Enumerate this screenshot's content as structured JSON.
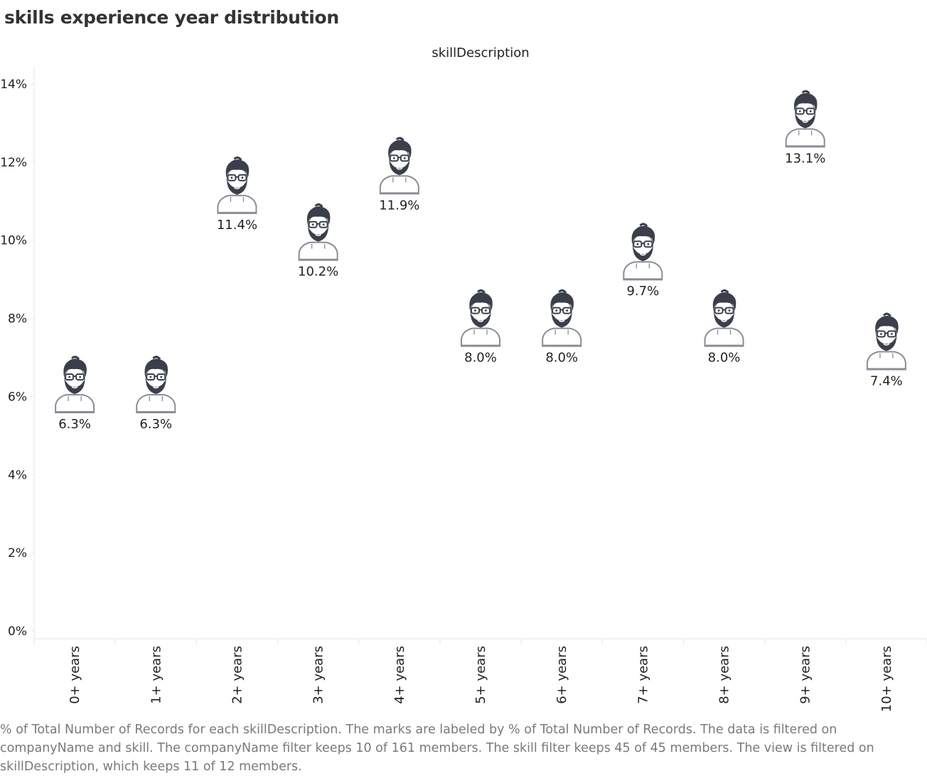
{
  "title": "skills experience year distribution",
  "caption": "% of Total Number of Records for each skillDescription.  The marks are labeled by % of Total Number of Records. The data is filtered on companyName and skill. The companyName filter keeps 10 of 161 members. The skill filter keeps 45 of 45 members. The view is filtered on skillDescription, which keeps 11 of 12 members.",
  "colors": {
    "text": "#222222",
    "grid": "#e6e6e6",
    "icon_stroke": "#8a8d96",
    "icon_hair": "#3a3f4b",
    "caption": "#7a7a7a"
  },
  "chart_data": {
    "type": "scatter",
    "marker": "person-icon",
    "column_header": "skillDescription",
    "categories": [
      "0+ years",
      "1+ years",
      "2+ years",
      "3+ years",
      "4+ years",
      "5+ years",
      "6+ years",
      "7+ years",
      "8+ years",
      "9+ years",
      "10+ years"
    ],
    "values": [
      6.3,
      6.3,
      11.4,
      10.2,
      11.9,
      8.0,
      8.0,
      9.7,
      8.0,
      13.1,
      7.4
    ],
    "labels": [
      "6.3%",
      "6.3%",
      "11.4%",
      "10.2%",
      "11.9%",
      "8.0%",
      "8.0%",
      "9.7%",
      "8.0%",
      "13.1%",
      "7.4%"
    ],
    "y_ticks": [
      "0%",
      "2%",
      "4%",
      "6%",
      "8%",
      "10%",
      "12%",
      "14%"
    ],
    "ylim": [
      0,
      14
    ],
    "xlabel": "",
    "ylabel": "",
    "grid": false,
    "legend": "none"
  }
}
